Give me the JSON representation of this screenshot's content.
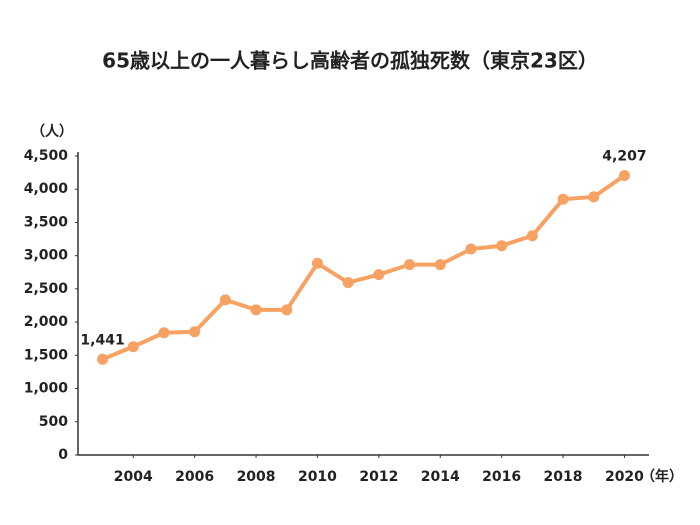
{
  "chart_data": {
    "type": "line",
    "title": "65歳以上の一人暮らし高齢者の孤独死数（東京23区）",
    "y_label": "（人）",
    "x_label": "（年）",
    "x": [
      2003,
      2004,
      2005,
      2006,
      2007,
      2008,
      2009,
      2010,
      2011,
      2012,
      2013,
      2014,
      2015,
      2016,
      2017,
      2018,
      2019,
      2020
    ],
    "series": [
      {
        "name": "孤独死数",
        "color": "#f7a262",
        "values": [
          1441,
          1630,
          1840,
          1855,
          2335,
          2185,
          2185,
          2885,
          2595,
          2715,
          2865,
          2865,
          3100,
          3150,
          3300,
          3850,
          3885,
          4207
        ],
        "value_labels": [
          "1,441",
          null,
          null,
          null,
          null,
          null,
          null,
          null,
          null,
          null,
          null,
          null,
          null,
          null,
          null,
          null,
          null,
          "4,207"
        ]
      }
    ],
    "xlim": [
      2002.2,
      2020.8
    ],
    "xticks": [
      2004,
      2006,
      2008,
      2010,
      2012,
      2014,
      2016,
      2018,
      2020
    ],
    "ylim": [
      0,
      4500
    ],
    "yticks": [
      0,
      500,
      {
        "value": 1000,
        "label": "1,000"
      },
      {
        "value": 1500,
        "label": "1,500"
      },
      {
        "value": 2000,
        "label": "2,000"
      },
      {
        "value": 2500,
        "label": "2,500"
      },
      {
        "value": 3000,
        "label": "3,000"
      },
      {
        "value": 3500,
        "label": "3,500"
      },
      {
        "value": 4000,
        "label": "4,000"
      },
      {
        "value": 4500,
        "label": "4,500"
      }
    ],
    "grid": false
  }
}
